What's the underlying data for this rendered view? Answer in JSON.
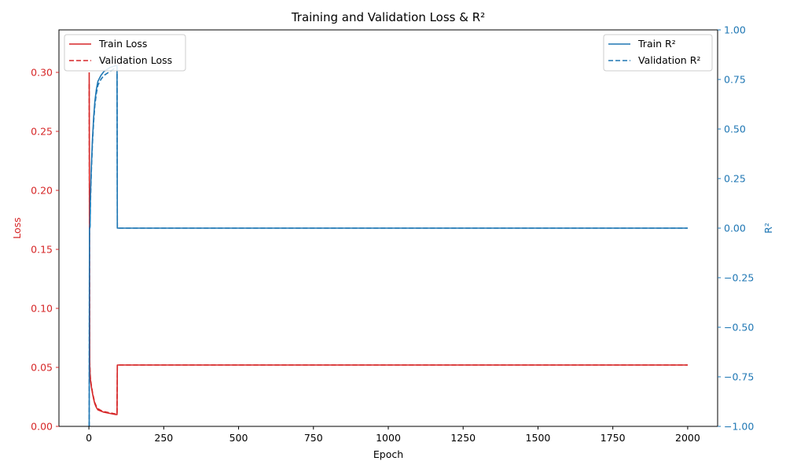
{
  "chart_data": {
    "type": "line",
    "title": "Training and Validation Loss & R²",
    "xlabel": "Epoch",
    "ylabel": "Loss",
    "y2label": "R²",
    "xlim": [
      -100,
      2100
    ],
    "ylim": [
      0,
      0.336
    ],
    "y2lim": [
      -1.0,
      1.0
    ],
    "x_ticks": [
      "0",
      "250",
      "500",
      "750",
      "1000",
      "1250",
      "1500",
      "1750",
      "2000"
    ],
    "y_ticks": [
      "0.00",
      "0.05",
      "0.10",
      "0.15",
      "0.20",
      "0.25",
      "0.30"
    ],
    "y2_ticks": [
      "−1.00",
      "−0.75",
      "−0.50",
      "−0.25",
      "0.00",
      "0.25",
      "0.50",
      "0.75",
      "1.00"
    ],
    "grid": false,
    "legend_left_position": "upper-left",
    "legend_right_position": "upper-right",
    "colors": {
      "loss": "#d62728",
      "r2": "#1f77b4"
    },
    "series": [
      {
        "name": "Train Loss",
        "axis": "left",
        "style": "solid",
        "color": "#d62728",
        "x": [
          1,
          2,
          3,
          4,
          5,
          8,
          12,
          16,
          20,
          25,
          30,
          40,
          50,
          60,
          70,
          80,
          90,
          94,
          95,
          100,
          500,
          1000,
          1500,
          2000
        ],
        "y": [
          0.3,
          0.17,
          0.052,
          0.045,
          0.04,
          0.034,
          0.028,
          0.023,
          0.019,
          0.016,
          0.014,
          0.013,
          0.012,
          0.0115,
          0.011,
          0.0105,
          0.01,
          0.01,
          0.052,
          0.052,
          0.052,
          0.052,
          0.052,
          0.052
        ]
      },
      {
        "name": "Validation Loss",
        "axis": "left",
        "style": "dashed",
        "color": "#d62728",
        "x": [
          1,
          2,
          3,
          4,
          5,
          8,
          12,
          16,
          20,
          25,
          30,
          40,
          50,
          60,
          70,
          80,
          90,
          94,
          95,
          100,
          500,
          1000,
          1500,
          2000
        ],
        "y": [
          0.29,
          0.16,
          0.054,
          0.046,
          0.041,
          0.035,
          0.029,
          0.024,
          0.02,
          0.017,
          0.015,
          0.0135,
          0.0125,
          0.012,
          0.0115,
          0.011,
          0.0105,
          0.0105,
          0.052,
          0.052,
          0.052,
          0.052,
          0.052,
          0.052
        ]
      },
      {
        "name": "Train R²",
        "axis": "right",
        "style": "solid",
        "color": "#1f77b4",
        "x": [
          1,
          2,
          3,
          4,
          5,
          8,
          12,
          16,
          20,
          25,
          30,
          40,
          50,
          60,
          70,
          80,
          90,
          94,
          95,
          100,
          500,
          1000,
          1500,
          2000
        ],
        "y": [
          -1.0,
          0.0,
          0.0,
          0.02,
          0.15,
          0.3,
          0.45,
          0.56,
          0.64,
          0.7,
          0.74,
          0.77,
          0.79,
          0.8,
          0.81,
          0.815,
          0.82,
          0.82,
          0.0,
          0.0,
          0.0,
          0.0,
          0.0,
          0.0
        ]
      },
      {
        "name": "Validation R²",
        "axis": "right",
        "style": "dashed",
        "color": "#1f77b4",
        "x": [
          1,
          2,
          3,
          4,
          5,
          8,
          12,
          16,
          20,
          25,
          30,
          40,
          50,
          60,
          70,
          80,
          90,
          94,
          95,
          100,
          500,
          1000,
          1500,
          2000
        ],
        "y": [
          -1.0,
          0.0,
          0.0,
          0.01,
          0.12,
          0.28,
          0.43,
          0.54,
          0.62,
          0.68,
          0.72,
          0.75,
          0.77,
          0.78,
          0.79,
          0.8,
          0.81,
          0.81,
          0.0,
          0.0,
          0.0,
          0.0,
          0.0,
          0.0
        ]
      }
    ]
  }
}
